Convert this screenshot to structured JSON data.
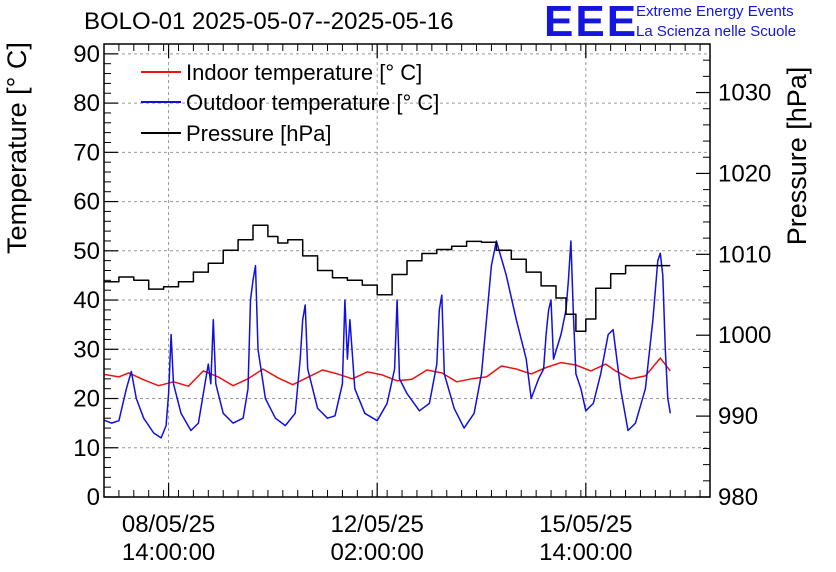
{
  "header": {
    "title": "BOLO-01 2025-05-07--2025-05-16",
    "logo_text": "EEE",
    "logo_line1": "Extreme Energy Events",
    "logo_line2": "La Scienza nelle Scuole",
    "logo_color": "#1515e0"
  },
  "chart_data": {
    "type": "line",
    "title": "BOLO-01 2025-05-07--2025-05-16",
    "ylabel": "Temperature [° C]",
    "y2label": "Pressure [hPa]",
    "ylim": [
      0,
      92
    ],
    "y2lim": [
      980,
      1036
    ],
    "yticks": [
      0,
      10,
      20,
      30,
      40,
      50,
      60,
      70,
      80,
      90
    ],
    "y2ticks": [
      980,
      990,
      1000,
      1010,
      1020,
      1030
    ],
    "xlim": [
      "2025-05-07 12:00",
      "2025-05-17 16:00"
    ],
    "xticks": [
      {
        "t": "2025-05-08 14:00",
        "line1": "08/05/25",
        "line2": "14:00:00"
      },
      {
        "t": "2025-05-12 02:00",
        "line1": "12/05/25",
        "line2": "02:00:00"
      },
      {
        "t": "2025-05-15 14:00",
        "line1": "15/05/25",
        "line2": "14:00:00"
      }
    ],
    "grid": true,
    "legend_position": "top-left",
    "series": [
      {
        "name": "Indoor temperature [° C]",
        "axis": "left",
        "color": "#ee1111",
        "points": [
          [
            "2025-05-07 12:00",
            24.9
          ],
          [
            "2025-05-07 18:00",
            24.4
          ],
          [
            "2025-05-07 22:00",
            25.2
          ],
          [
            "2025-05-08 04:00",
            23.8
          ],
          [
            "2025-05-08 10:00",
            22.6
          ],
          [
            "2025-05-08 16:00",
            23.4
          ],
          [
            "2025-05-08 22:00",
            22.5
          ],
          [
            "2025-05-09 04:00",
            25.6
          ],
          [
            "2025-05-09 10:00",
            24.4
          ],
          [
            "2025-05-09 16:00",
            22.6
          ],
          [
            "2025-05-09 22:00",
            24.0
          ],
          [
            "2025-05-10 04:00",
            26.0
          ],
          [
            "2025-05-10 10:00",
            24.2
          ],
          [
            "2025-05-10 16:00",
            22.8
          ],
          [
            "2025-05-10 22:00",
            24.3
          ],
          [
            "2025-05-11 04:00",
            25.8
          ],
          [
            "2025-05-11 10:00",
            25.0
          ],
          [
            "2025-05-11 16:00",
            24.0
          ],
          [
            "2025-05-11 22:00",
            25.4
          ],
          [
            "2025-05-12 04:00",
            24.8
          ],
          [
            "2025-05-12 10:00",
            23.6
          ],
          [
            "2025-05-12 16:00",
            23.9
          ],
          [
            "2025-05-12 22:00",
            25.8
          ],
          [
            "2025-05-13 04:00",
            25.2
          ],
          [
            "2025-05-13 10:00",
            23.4
          ],
          [
            "2025-05-13 16:00",
            24.0
          ],
          [
            "2025-05-13 22:00",
            24.4
          ],
          [
            "2025-05-14 04:00",
            26.6
          ],
          [
            "2025-05-14 10:00",
            26.0
          ],
          [
            "2025-05-14 16:00",
            25.0
          ],
          [
            "2025-05-14 22:00",
            26.3
          ],
          [
            "2025-05-15 04:00",
            27.3
          ],
          [
            "2025-05-15 10:00",
            26.8
          ],
          [
            "2025-05-15 16:00",
            25.6
          ],
          [
            "2025-05-15 22:00",
            27.0
          ],
          [
            "2025-05-16 02:00",
            25.6
          ],
          [
            "2025-05-16 08:00",
            24.0
          ],
          [
            "2025-05-16 14:00",
            24.6
          ],
          [
            "2025-05-16 20:00",
            28.2
          ],
          [
            "2025-05-17 00:00",
            25.6
          ]
        ]
      },
      {
        "name": "Outdoor temperature [° C]",
        "axis": "left",
        "color": "#1111dd",
        "points": [
          [
            "2025-05-07 12:00",
            15.6
          ],
          [
            "2025-05-07 15:00",
            15.0
          ],
          [
            "2025-05-07 18:00",
            15.5
          ],
          [
            "2025-05-07 21:00",
            22.0
          ],
          [
            "2025-05-07 23:00",
            25.5
          ],
          [
            "2025-05-08 01:00",
            20.0
          ],
          [
            "2025-05-08 04:00",
            16.0
          ],
          [
            "2025-05-08 08:00",
            13.0
          ],
          [
            "2025-05-08 11:00",
            12.0
          ],
          [
            "2025-05-08 13:00",
            14.5
          ],
          [
            "2025-05-08 14:00",
            21.0
          ],
          [
            "2025-05-08 15:00",
            33.0
          ],
          [
            "2025-05-08 16:00",
            23.0
          ],
          [
            "2025-05-08 19:00",
            17.0
          ],
          [
            "2025-05-08 23:00",
            13.5
          ],
          [
            "2025-05-09 02:00",
            15.0
          ],
          [
            "2025-05-09 05:00",
            24.0
          ],
          [
            "2025-05-09 06:00",
            27.0
          ],
          [
            "2025-05-09 07:00",
            23.0
          ],
          [
            "2025-05-09 08:00",
            36.0
          ],
          [
            "2025-05-09 09:00",
            23.0
          ],
          [
            "2025-05-09 12:00",
            17.0
          ],
          [
            "2025-05-09 16:00",
            15.0
          ],
          [
            "2025-05-09 20:00",
            16.0
          ],
          [
            "2025-05-09 22:00",
            22.0
          ],
          [
            "2025-05-09 23:00",
            40.0
          ],
          [
            "2025-05-10 00:00",
            44.0
          ],
          [
            "2025-05-10 01:00",
            47.0
          ],
          [
            "2025-05-10 02:00",
            30.0
          ],
          [
            "2025-05-10 05:00",
            20.0
          ],
          [
            "2025-05-10 09:00",
            16.0
          ],
          [
            "2025-05-10 13:00",
            14.5
          ],
          [
            "2025-05-10 17:00",
            17.0
          ],
          [
            "2025-05-10 19:00",
            28.0
          ],
          [
            "2025-05-10 20:00",
            36.0
          ],
          [
            "2025-05-10 21:00",
            39.0
          ],
          [
            "2025-05-10 22:00",
            26.0
          ],
          [
            "2025-05-11 02:00",
            18.0
          ],
          [
            "2025-05-11 06:00",
            16.0
          ],
          [
            "2025-05-11 09:00",
            16.5
          ],
          [
            "2025-05-11 12:00",
            23.0
          ],
          [
            "2025-05-11 13:00",
            40.0
          ],
          [
            "2025-05-11 14:00",
            28.0
          ],
          [
            "2025-05-11 15:00",
            36.0
          ],
          [
            "2025-05-11 17:00",
            22.0
          ],
          [
            "2025-05-11 21:00",
            17.0
          ],
          [
            "2025-05-12 02:00",
            15.5
          ],
          [
            "2025-05-12 06:00",
            19.0
          ],
          [
            "2025-05-12 09:00",
            26.0
          ],
          [
            "2025-05-12 10:00",
            40.0
          ],
          [
            "2025-05-12 11:00",
            24.0
          ],
          [
            "2025-05-12 14:00",
            21.0
          ],
          [
            "2025-05-12 19:00",
            17.5
          ],
          [
            "2025-05-12 23:00",
            19.0
          ],
          [
            "2025-05-13 02:00",
            27.0
          ],
          [
            "2025-05-13 03:00",
            38.0
          ],
          [
            "2025-05-13 04:00",
            41.0
          ],
          [
            "2025-05-13 05:00",
            25.0
          ],
          [
            "2025-05-13 09:00",
            18.0
          ],
          [
            "2025-05-13 13:00",
            14.0
          ],
          [
            "2025-05-13 17:00",
            17.0
          ],
          [
            "2025-05-13 20:00",
            25.0
          ],
          [
            "2025-05-13 22:00",
            36.0
          ],
          [
            "2025-05-14 00:00",
            47.0
          ],
          [
            "2025-05-14 02:00",
            52.0
          ],
          [
            "2025-05-14 06:00",
            45.0
          ],
          [
            "2025-05-14 10:00",
            36.0
          ],
          [
            "2025-05-14 14:00",
            28.0
          ],
          [
            "2025-05-14 16:00",
            20.0
          ],
          [
            "2025-05-14 19:00",
            24.0
          ],
          [
            "2025-05-14 21:00",
            26.0
          ],
          [
            "2025-05-14 22:00",
            33.0
          ],
          [
            "2025-05-14 23:00",
            38.0
          ],
          [
            "2025-05-15 00:00",
            40.0
          ],
          [
            "2025-05-15 01:00",
            28.0
          ],
          [
            "2025-05-15 04:00",
            33.0
          ],
          [
            "2025-05-15 06:00",
            38.0
          ],
          [
            "2025-05-15 07:00",
            44.0
          ],
          [
            "2025-05-15 08:00",
            52.0
          ],
          [
            "2025-05-15 09:00",
            37.0
          ],
          [
            "2025-05-15 10:00",
            25.0
          ],
          [
            "2025-05-15 12:00",
            22.0
          ],
          [
            "2025-05-15 14:00",
            17.5
          ],
          [
            "2025-05-15 17:00",
            19.0
          ],
          [
            "2025-05-15 20:00",
            25.0
          ],
          [
            "2025-05-15 23:00",
            33.0
          ],
          [
            "2025-05-16 01:00",
            34.0
          ],
          [
            "2025-05-16 04:00",
            22.0
          ],
          [
            "2025-05-16 07:00",
            13.5
          ],
          [
            "2025-05-16 10:00",
            15.0
          ],
          [
            "2025-05-16 14:00",
            22.0
          ],
          [
            "2025-05-16 17:00",
            36.0
          ],
          [
            "2025-05-16 19:00",
            48.0
          ],
          [
            "2025-05-16 20:00",
            49.5
          ],
          [
            "2025-05-16 21:00",
            45.0
          ],
          [
            "2025-05-16 22:00",
            30.0
          ],
          [
            "2025-05-16 23:00",
            20.0
          ],
          [
            "2025-05-17 00:00",
            17.0
          ]
        ]
      },
      {
        "name": "Pressure [hPa]",
        "axis": "right",
        "color": "#000000",
        "points": [
          [
            "2025-05-07 12:00",
            1006.6
          ],
          [
            "2025-05-07 18:00",
            1007.2
          ],
          [
            "2025-05-08 00:00",
            1006.8
          ],
          [
            "2025-05-08 06:00",
            1005.7
          ],
          [
            "2025-05-08 12:00",
            1006.0
          ],
          [
            "2025-05-08 18:00",
            1006.6
          ],
          [
            "2025-05-09 00:00",
            1007.8
          ],
          [
            "2025-05-09 06:00",
            1008.9
          ],
          [
            "2025-05-09 12:00",
            1010.5
          ],
          [
            "2025-05-09 18:00",
            1011.8
          ],
          [
            "2025-05-10 00:00",
            1013.6
          ],
          [
            "2025-05-10 06:00",
            1012.2
          ],
          [
            "2025-05-10 10:00",
            1011.4
          ],
          [
            "2025-05-10 14:00",
            1011.8
          ],
          [
            "2025-05-10 20:00",
            1009.8
          ],
          [
            "2025-05-11 02:00",
            1008.0
          ],
          [
            "2025-05-11 08:00",
            1007.1
          ],
          [
            "2025-05-11 14:00",
            1006.8
          ],
          [
            "2025-05-11 20:00",
            1006.2
          ],
          [
            "2025-05-12 02:00",
            1005.0
          ],
          [
            "2025-05-12 08:00",
            1007.5
          ],
          [
            "2025-05-12 14:00",
            1009.2
          ],
          [
            "2025-05-12 20:00",
            1010.1
          ],
          [
            "2025-05-13 02:00",
            1010.6
          ],
          [
            "2025-05-13 08:00",
            1011.0
          ],
          [
            "2025-05-13 14:00",
            1011.6
          ],
          [
            "2025-05-13 20:00",
            1011.5
          ],
          [
            "2025-05-14 02:00",
            1010.5
          ],
          [
            "2025-05-14 08:00",
            1009.4
          ],
          [
            "2025-05-14 14:00",
            1007.8
          ],
          [
            "2025-05-14 20:00",
            1006.1
          ],
          [
            "2025-05-15 02:00",
            1004.6
          ],
          [
            "2025-05-15 06:00",
            1002.6
          ],
          [
            "2025-05-15 10:00",
            1000.5
          ],
          [
            "2025-05-15 14:00",
            1002.0
          ],
          [
            "2025-05-15 18:00",
            1005.8
          ],
          [
            "2025-05-16 00:00",
            1007.6
          ],
          [
            "2025-05-16 06:00",
            1008.6
          ],
          [
            "2025-05-16 12:00",
            1008.6
          ],
          [
            "2025-05-16 18:00",
            1008.6
          ],
          [
            "2025-05-17 00:00",
            1008.6
          ]
        ]
      }
    ]
  }
}
